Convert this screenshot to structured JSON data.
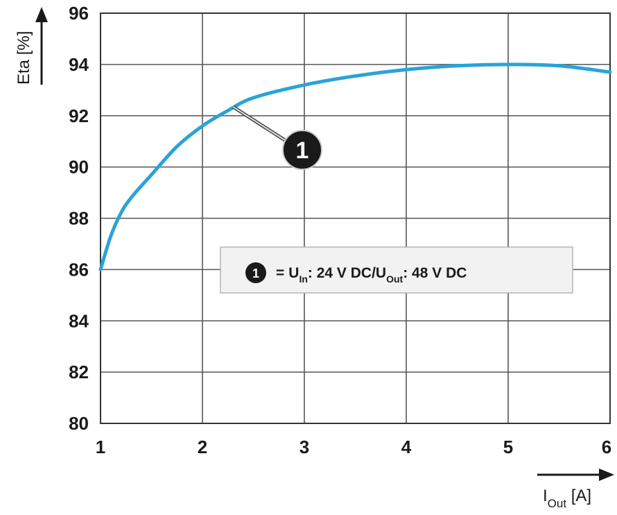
{
  "chart_data": {
    "type": "line",
    "x_axis": {
      "label_main": "I",
      "label_sub": "Out",
      "label_unit": " [A]",
      "ticks": [
        "1",
        "2",
        "3",
        "4",
        "5",
        "6"
      ],
      "range": [
        1,
        6
      ]
    },
    "y_axis": {
      "label": "Eta [%]",
      "ticks": [
        "80",
        "82",
        "84",
        "86",
        "88",
        "90",
        "92",
        "94",
        "96"
      ],
      "range": [
        80,
        96
      ]
    },
    "grid": true,
    "series": [
      {
        "marker": "1",
        "color": "#2aa3d8",
        "x": [
          1.0,
          1.1,
          1.2,
          1.3,
          1.5,
          1.75,
          2.0,
          2.25,
          2.5,
          3.0,
          3.5,
          4.0,
          4.5,
          5.0,
          5.5,
          6.0
        ],
        "y": [
          86.0,
          87.3,
          88.2,
          88.8,
          89.7,
          90.8,
          91.6,
          92.2,
          92.7,
          93.2,
          93.55,
          93.8,
          93.95,
          94.0,
          93.95,
          93.7
        ]
      }
    ],
    "callout": {
      "marker": "1",
      "x": 2.3,
      "y": 92.35
    },
    "legend": {
      "marker": "1",
      "eq": "=",
      "u_in_main": "U",
      "u_in_sub": "In",
      "u_in_value": ": 24 V DC/",
      "u_out_main": "U",
      "u_out_sub": "Out",
      "u_out_value": ": 48 V DC",
      "position": "center-right"
    }
  }
}
